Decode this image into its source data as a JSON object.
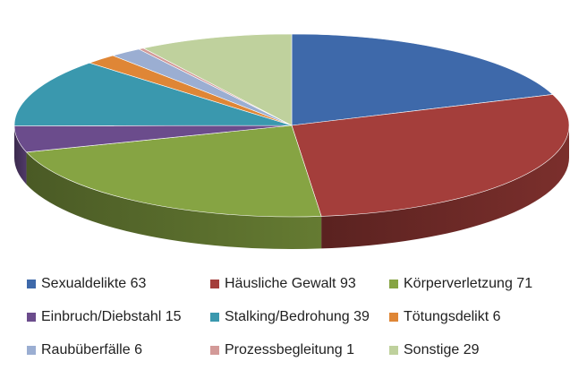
{
  "chart_data": {
    "type": "pie",
    "style": "3d",
    "title": "",
    "legend_position": "bottom",
    "slices": [
      {
        "name": "Sexualdelikte",
        "value": 63,
        "label": "Sexualdelikte 63",
        "color": "#3E69AA"
      },
      {
        "name": "Häusliche Gewalt",
        "value": 93,
        "label": "Häusliche Gewalt 93",
        "color": "#A43E3B"
      },
      {
        "name": "Körperverletzung",
        "value": 71,
        "label": "Körperverletzung 71",
        "color": "#86A443"
      },
      {
        "name": "Einbruch/Diebstahl",
        "value": 15,
        "label": "Einbruch/Diebstahl 15",
        "color": "#6B4C8C"
      },
      {
        "name": "Stalking/Bedrohung",
        "value": 39,
        "label": "Stalking/Bedrohung 39",
        "color": "#3A98AE"
      },
      {
        "name": "Tötungsdelikt",
        "value": 6,
        "label": "Tötungsdelikt 6",
        "color": "#DF8636"
      },
      {
        "name": "Raubüberfälle",
        "value": 6,
        "label": "Raubüberfälle 6",
        "color": "#9BAED2"
      },
      {
        "name": "Prozessbegleitung",
        "value": 1,
        "label": "Prozessbegleitung 1",
        "color": "#D39A98"
      },
      {
        "name": "Sonstige",
        "value": 29,
        "label": "Sonstige 29",
        "color": "#BFD19D"
      }
    ]
  }
}
